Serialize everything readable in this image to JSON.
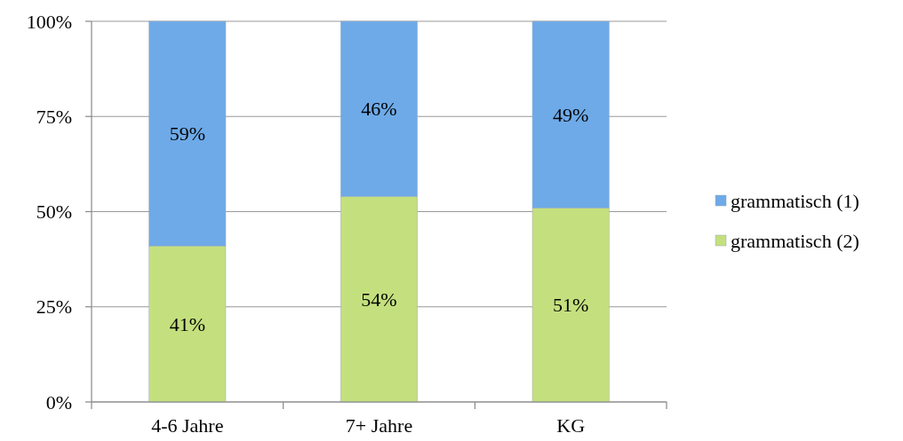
{
  "chart_data": {
    "type": "bar",
    "stacked": true,
    "categories": [
      "4-6 Jahre",
      "7+ Jahre",
      "KG"
    ],
    "series": [
      {
        "name": "grammatisch (2)",
        "color": "#c4e07e",
        "values": [
          41,
          54,
          51
        ],
        "value_labels": [
          "41%",
          "54%",
          "51%"
        ]
      },
      {
        "name": "grammatisch (1)",
        "color": "#6eaae8",
        "values": [
          59,
          46,
          49
        ],
        "value_labels": [
          "59%",
          "46%",
          "49%"
        ]
      }
    ],
    "ylim": [
      0,
      100
    ],
    "yticks": [
      {
        "value": 0,
        "label": "0%"
      },
      {
        "value": 25,
        "label": "25%"
      },
      {
        "value": 50,
        "label": "50%"
      },
      {
        "value": 75,
        "label": "75%"
      },
      {
        "value": 100,
        "label": "100%"
      }
    ],
    "grid": "y",
    "legend": "right"
  }
}
